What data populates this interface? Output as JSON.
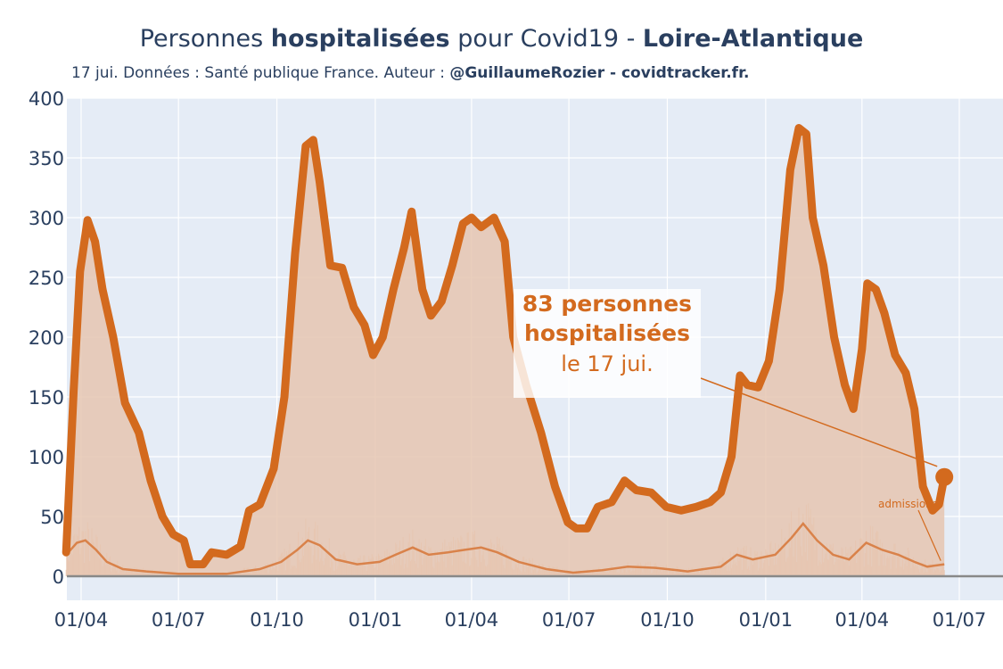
{
  "title": {
    "part1": "Personnes ",
    "bold1": "hospitalisées",
    "part2": " pour Covid19 - ",
    "bold2": "Loire-Atlantique"
  },
  "subtitle": {
    "text": "17 jui. Données : Santé publique France. Auteur : ",
    "bold": "@GuillaumeRozier - covidtracker.fr."
  },
  "annotation": {
    "line1": "83 personnes",
    "line2": "hospitalisées",
    "line3": "le 17 jui."
  },
  "admissions_label": "admissions",
  "colors": {
    "hosp": "#d36a1e",
    "fill": "#e6c5b0",
    "bg": "#e5ecf6",
    "grid": "#ffffff",
    "admissions": "#d9824a"
  },
  "chart_data": {
    "type": "area",
    "ylim": [
      0,
      400
    ],
    "y_ticks": [
      0,
      50,
      100,
      150,
      200,
      250,
      300,
      350,
      400
    ],
    "x_ticks": [
      "01/04",
      "01/07",
      "01/10",
      "01/01",
      "01/04",
      "01/07",
      "01/10",
      "01/01",
      "01/04",
      "01/07"
    ],
    "x_tick_dates": [
      "2020-04-01",
      "2020-07-01",
      "2020-10-01",
      "2021-01-01",
      "2021-04-01",
      "2021-07-01",
      "2021-10-01",
      "2022-01-01",
      "2022-04-01",
      "2022-07-01"
    ],
    "series": [
      {
        "name": "hospitalisées",
        "points": [
          [
            "2020-03-18",
            20
          ],
          [
            "2020-03-25",
            155
          ],
          [
            "2020-03-31",
            255
          ],
          [
            "2020-04-07",
            298
          ],
          [
            "2020-04-14",
            280
          ],
          [
            "2020-04-21",
            240
          ],
          [
            "2020-05-01",
            200
          ],
          [
            "2020-05-12",
            145
          ],
          [
            "2020-05-25",
            120
          ],
          [
            "2020-06-05",
            80
          ],
          [
            "2020-06-16",
            50
          ],
          [
            "2020-06-26",
            35
          ],
          [
            "2020-07-06",
            30
          ],
          [
            "2020-07-12",
            10
          ],
          [
            "2020-07-24",
            10
          ],
          [
            "2020-08-01",
            20
          ],
          [
            "2020-08-15",
            18
          ],
          [
            "2020-08-28",
            25
          ],
          [
            "2020-09-05",
            55
          ],
          [
            "2020-09-15",
            60
          ],
          [
            "2020-09-28",
            90
          ],
          [
            "2020-10-08",
            150
          ],
          [
            "2020-10-18",
            270
          ],
          [
            "2020-10-28",
            360
          ],
          [
            "2020-11-04",
            365
          ],
          [
            "2020-11-10",
            330
          ],
          [
            "2020-11-20",
            260
          ],
          [
            "2020-12-01",
            258
          ],
          [
            "2020-12-12",
            225
          ],
          [
            "2020-12-22",
            210
          ],
          [
            "2020-12-30",
            185
          ],
          [
            "2021-01-08",
            200
          ],
          [
            "2021-01-18",
            240
          ],
          [
            "2021-01-28",
            275
          ],
          [
            "2021-02-04",
            305
          ],
          [
            "2021-02-14",
            240
          ],
          [
            "2021-02-22",
            218
          ],
          [
            "2021-03-04",
            230
          ],
          [
            "2021-03-14",
            260
          ],
          [
            "2021-03-24",
            295
          ],
          [
            "2021-04-01",
            300
          ],
          [
            "2021-04-10",
            292
          ],
          [
            "2021-04-22",
            300
          ],
          [
            "2021-05-02",
            280
          ],
          [
            "2021-05-10",
            200
          ],
          [
            "2021-05-22",
            160
          ],
          [
            "2021-06-05",
            120
          ],
          [
            "2021-06-18",
            75
          ],
          [
            "2021-06-30",
            45
          ],
          [
            "2021-07-08",
            40
          ],
          [
            "2021-07-18",
            40
          ],
          [
            "2021-07-28",
            58
          ],
          [
            "2021-08-10",
            62
          ],
          [
            "2021-08-22",
            80
          ],
          [
            "2021-09-02",
            72
          ],
          [
            "2021-09-16",
            70
          ],
          [
            "2021-09-30",
            58
          ],
          [
            "2021-10-14",
            55
          ],
          [
            "2021-10-28",
            58
          ],
          [
            "2021-11-10",
            62
          ],
          [
            "2021-11-20",
            70
          ],
          [
            "2021-11-30",
            100
          ],
          [
            "2021-12-08",
            168
          ],
          [
            "2021-12-15",
            160
          ],
          [
            "2021-12-25",
            158
          ],
          [
            "2022-01-04",
            180
          ],
          [
            "2022-01-14",
            240
          ],
          [
            "2022-01-24",
            340
          ],
          [
            "2022-02-01",
            375
          ],
          [
            "2022-02-08",
            370
          ],
          [
            "2022-02-14",
            300
          ],
          [
            "2022-02-24",
            260
          ],
          [
            "2022-03-06",
            200
          ],
          [
            "2022-03-16",
            160
          ],
          [
            "2022-03-24",
            140
          ],
          [
            "2022-04-01",
            190
          ],
          [
            "2022-04-06",
            245
          ],
          [
            "2022-04-14",
            240
          ],
          [
            "2022-04-22",
            220
          ],
          [
            "2022-05-02",
            185
          ],
          [
            "2022-05-12",
            170
          ],
          [
            "2022-05-20",
            140
          ],
          [
            "2022-05-28",
            75
          ],
          [
            "2022-06-06",
            55
          ],
          [
            "2022-06-12",
            60
          ],
          [
            "2022-06-17",
            83
          ]
        ]
      },
      {
        "name": "admissions",
        "points": [
          [
            "2020-03-18",
            18
          ],
          [
            "2020-03-28",
            28
          ],
          [
            "2020-04-05",
            30
          ],
          [
            "2020-04-15",
            22
          ],
          [
            "2020-04-25",
            12
          ],
          [
            "2020-05-10",
            6
          ],
          [
            "2020-06-01",
            4
          ],
          [
            "2020-07-01",
            2
          ],
          [
            "2020-08-15",
            2
          ],
          [
            "2020-09-15",
            6
          ],
          [
            "2020-10-05",
            12
          ],
          [
            "2020-10-20",
            22
          ],
          [
            "2020-10-30",
            30
          ],
          [
            "2020-11-10",
            26
          ],
          [
            "2020-11-25",
            14
          ],
          [
            "2020-12-15",
            10
          ],
          [
            "2021-01-05",
            12
          ],
          [
            "2021-01-20",
            18
          ],
          [
            "2021-02-05",
            24
          ],
          [
            "2021-02-20",
            18
          ],
          [
            "2021-03-10",
            20
          ],
          [
            "2021-03-25",
            22
          ],
          [
            "2021-04-10",
            24
          ],
          [
            "2021-04-25",
            20
          ],
          [
            "2021-05-15",
            12
          ],
          [
            "2021-06-10",
            6
          ],
          [
            "2021-07-05",
            3
          ],
          [
            "2021-08-01",
            5
          ],
          [
            "2021-08-25",
            8
          ],
          [
            "2021-09-20",
            7
          ],
          [
            "2021-10-20",
            4
          ],
          [
            "2021-11-20",
            8
          ],
          [
            "2021-12-05",
            18
          ],
          [
            "2021-12-20",
            14
          ],
          [
            "2022-01-10",
            18
          ],
          [
            "2022-01-25",
            32
          ],
          [
            "2022-02-05",
            44
          ],
          [
            "2022-02-18",
            30
          ],
          [
            "2022-03-05",
            18
          ],
          [
            "2022-03-20",
            14
          ],
          [
            "2022-04-05",
            28
          ],
          [
            "2022-04-20",
            22
          ],
          [
            "2022-05-05",
            18
          ],
          [
            "2022-05-20",
            12
          ],
          [
            "2022-06-01",
            8
          ],
          [
            "2022-06-17",
            10
          ]
        ]
      }
    ]
  }
}
